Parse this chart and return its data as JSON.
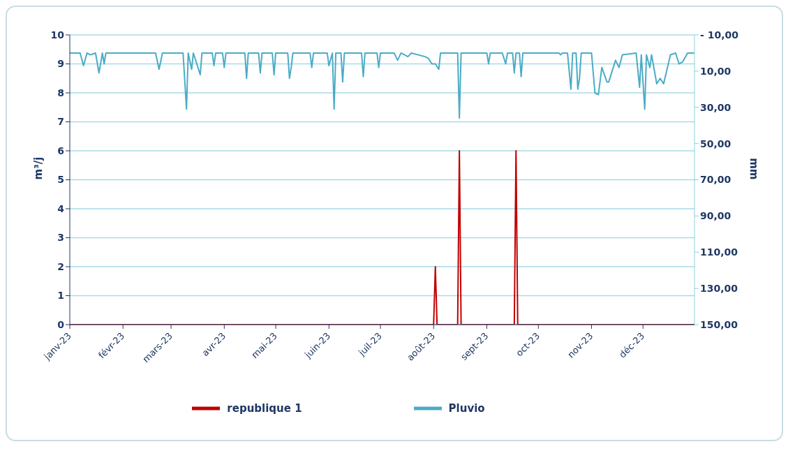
{
  "chart_data": {
    "type": "line",
    "ylabel": "m³/j",
    "y2label": "mm",
    "xlim": [
      "2023-01-01",
      "2023-12-31"
    ],
    "xticks": [
      {
        "value": "2023-01-01",
        "label": "janv-23"
      },
      {
        "value": "2023-02-01",
        "label": "févr-23"
      },
      {
        "value": "2023-03-01",
        "label": "mars-23"
      },
      {
        "value": "2023-04-01",
        "label": "avr-23"
      },
      {
        "value": "2023-05-01",
        "label": "mai-23"
      },
      {
        "value": "2023-06-01",
        "label": "juin-23"
      },
      {
        "value": "2023-07-01",
        "label": "juil-23"
      },
      {
        "value": "2023-08-01",
        "label": "août-23"
      },
      {
        "value": "2023-09-01",
        "label": "sept-23"
      },
      {
        "value": "2023-10-01",
        "label": "oct-23"
      },
      {
        "value": "2023-11-01",
        "label": "nov-23"
      },
      {
        "value": "2023-12-01",
        "label": "déc-23"
      }
    ],
    "ylim": [
      0,
      10
    ],
    "yticks": [
      0,
      1,
      2,
      3,
      4,
      5,
      6,
      7,
      8,
      9,
      10
    ],
    "y2lim": [
      150,
      -10
    ],
    "y2ticks": [
      {
        "value": -10,
        "label": "- 10,00"
      },
      {
        "value": 10,
        "label": "10,00"
      },
      {
        "value": 30,
        "label": "30,00"
      },
      {
        "value": 50,
        "label": "50,00"
      },
      {
        "value": 70,
        "label": "70,00"
      },
      {
        "value": 90,
        "label": "90,00"
      },
      {
        "value": 110,
        "label": "110,00"
      },
      {
        "value": 130,
        "label": "130,00"
      },
      {
        "value": 150,
        "label": "150,00"
      }
    ],
    "grid": "y",
    "legend": "bottom",
    "marker": "none",
    "line_style": "solid",
    "series": [
      {
        "name": "republique 1",
        "color": "#c00000",
        "x": [
          "2023-01-01",
          "2023-08-01",
          "2023-08-02",
          "2023-08-03",
          "2023-08-15",
          "2023-08-16",
          "2023-08-17",
          "2023-09-17",
          "2023-09-18",
          "2023-09-19",
          "2023-12-31"
        ],
        "values": [
          0,
          0,
          2,
          0,
          0,
          6,
          0,
          0,
          6,
          0,
          0
        ]
      },
      {
        "name": "Pluvio",
        "color": "#4bacc6",
        "axis": "y2",
        "x": [
          "2023-01-01",
          "2023-01-07",
          "2023-01-09",
          "2023-01-11",
          "2023-01-13",
          "2023-01-16",
          "2023-01-18",
          "2023-01-20",
          "2023-01-21",
          "2023-01-22",
          "2023-02-20",
          "2023-02-22",
          "2023-02-24",
          "2023-03-08",
          "2023-03-10",
          "2023-03-11",
          "2023-03-13",
          "2023-03-14",
          "2023-03-18",
          "2023-03-19",
          "2023-03-25",
          "2023-03-26",
          "2023-03-27",
          "2023-03-31",
          "2023-04-01",
          "2023-04-02",
          "2023-04-13",
          "2023-04-14",
          "2023-04-15",
          "2023-04-21",
          "2023-04-22",
          "2023-04-23",
          "2023-04-29",
          "2023-04-30",
          "2023-05-01",
          "2023-05-08",
          "2023-05-09",
          "2023-05-10",
          "2023-05-11",
          "2023-05-21",
          "2023-05-22",
          "2023-05-23",
          "2023-05-31",
          "2023-06-01",
          "2023-06-03",
          "2023-06-04",
          "2023-06-05",
          "2023-06-08",
          "2023-06-09",
          "2023-06-10",
          "2023-06-20",
          "2023-06-21",
          "2023-06-22",
          "2023-06-29",
          "2023-06-30",
          "2023-07-01",
          "2023-07-09",
          "2023-07-11",
          "2023-07-13",
          "2023-07-17",
          "2023-07-19",
          "2023-07-27",
          "2023-07-29",
          "2023-07-31",
          "2023-08-02",
          "2023-08-04",
          "2023-08-05",
          "2023-08-15",
          "2023-08-16",
          "2023-08-17",
          "2023-09-01",
          "2023-09-02",
          "2023-09-03",
          "2023-09-10",
          "2023-09-12",
          "2023-09-13",
          "2023-09-16",
          "2023-09-17",
          "2023-09-18",
          "2023-09-20",
          "2023-09-21",
          "2023-09-22",
          "2023-10-13",
          "2023-10-14",
          "2023-10-15",
          "2023-10-18",
          "2023-10-20",
          "2023-10-21",
          "2023-10-23",
          "2023-10-24",
          "2023-10-25",
          "2023-10-26",
          "2023-11-01",
          "2023-11-03",
          "2023-11-05",
          "2023-11-07",
          "2023-11-10",
          "2023-11-11",
          "2023-11-13",
          "2023-11-15",
          "2023-11-17",
          "2023-11-19",
          "2023-11-27",
          "2023-11-29",
          "2023-11-30",
          "2023-12-02",
          "2023-12-03",
          "2023-12-05",
          "2023-12-06",
          "2023-12-09",
          "2023-12-11",
          "2023-12-13",
          "2023-12-17",
          "2023-12-20",
          "2023-12-22",
          "2023-12-24",
          "2023-12-27",
          "2023-12-31"
        ],
        "values": [
          0,
          0,
          7,
          0,
          1,
          0,
          11,
          0,
          6,
          0,
          0,
          9,
          0,
          0,
          31,
          0,
          9,
          0,
          12,
          0,
          0,
          7,
          0,
          0,
          8,
          0,
          0,
          14,
          0,
          0,
          11,
          0,
          0,
          12,
          0,
          0,
          14,
          8,
          0,
          0,
          8,
          0,
          0,
          7,
          0,
          31,
          0,
          0,
          16,
          0,
          0,
          13,
          0,
          0,
          8,
          0,
          0,
          4,
          0,
          2,
          0,
          2,
          3,
          6,
          6,
          9,
          0,
          0,
          36,
          0,
          0,
          6,
          0,
          0,
          6,
          0,
          0,
          11,
          0,
          0,
          13,
          0,
          0,
          1,
          0,
          0,
          20,
          0,
          0,
          20,
          14,
          0,
          0,
          22,
          23,
          8,
          16,
          16,
          10,
          4,
          8,
          1,
          0,
          19,
          1,
          31,
          1,
          8,
          1,
          17,
          14,
          17,
          1,
          0,
          6,
          5,
          0,
          0
        ]
      }
    ]
  }
}
